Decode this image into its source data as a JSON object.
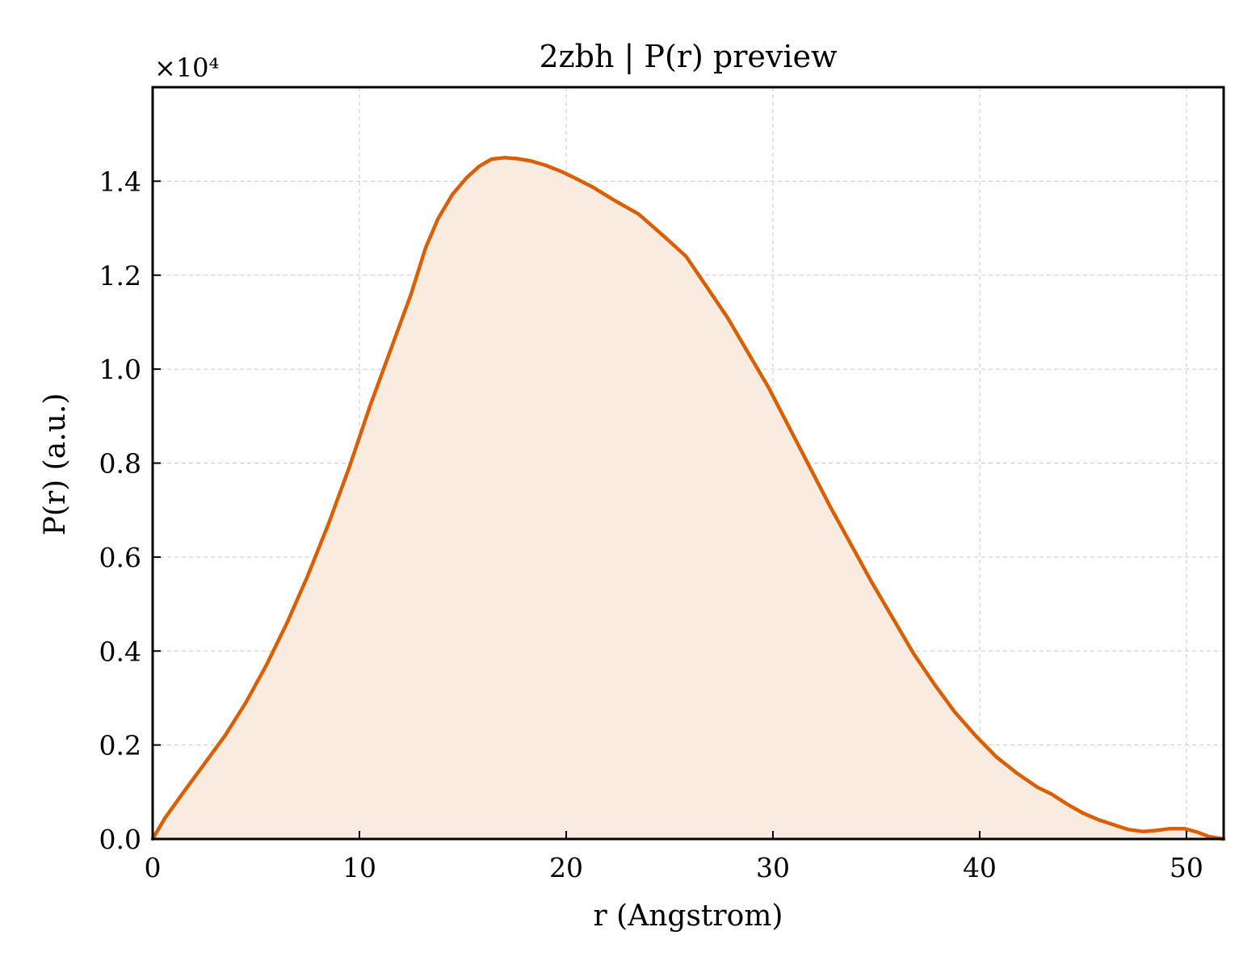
{
  "chart_data": {
    "type": "area",
    "title": "2zbh | P(r) preview",
    "xlabel": "r (Angstrom)",
    "ylabel": "P(r) (a.u.)",
    "y_multiplier": "×10⁴",
    "xlim": [
      0,
      51.8
    ],
    "ylim": [
      0,
      1.6
    ],
    "x_ticks": [
      0,
      10,
      20,
      30,
      40,
      50
    ],
    "x_tick_labels": [
      "0",
      "10",
      "20",
      "30",
      "40",
      "50"
    ],
    "y_ticks": [
      0.0,
      0.2,
      0.4,
      0.6,
      0.8,
      1.0,
      1.2,
      1.4
    ],
    "y_tick_labels": [
      "0.0",
      "0.2",
      "0.4",
      "0.6",
      "0.8",
      "1.0",
      "1.2",
      "1.4"
    ],
    "grid": true,
    "legend": "none",
    "series": [
      {
        "color": "#d95f02",
        "fill_color": "#f9ebe0",
        "x": [
          0,
          0.6,
          1.5,
          2.5,
          3.5,
          4.5,
          5.5,
          6.5,
          7.5,
          8.5,
          9.5,
          10.5,
          11.5,
          12.5,
          13.2,
          13.8,
          14.5,
          15.2,
          15.8,
          16.4,
          17.0,
          17.6,
          18.3,
          19.0,
          19.8,
          20.5,
          21.3,
          22.3,
          23.5,
          24.8,
          25.8,
          26.8,
          27.8,
          28.8,
          29.8,
          30.8,
          31.8,
          32.8,
          33.8,
          34.8,
          35.8,
          36.8,
          37.8,
          38.8,
          39.8,
          40.8,
          41.8,
          42.8,
          43.5,
          44.2,
          45.0,
          45.8,
          46.5,
          47.2,
          47.9,
          48.5,
          49.2,
          49.9,
          50.5,
          51.1,
          51.8
        ],
        "y": [
          0.0,
          0.045,
          0.1,
          0.16,
          0.22,
          0.29,
          0.37,
          0.46,
          0.56,
          0.67,
          0.79,
          0.92,
          1.04,
          1.16,
          1.258,
          1.32,
          1.372,
          1.408,
          1.432,
          1.447,
          1.45,
          1.448,
          1.443,
          1.434,
          1.42,
          1.405,
          1.387,
          1.36,
          1.33,
          1.28,
          1.24,
          1.175,
          1.11,
          1.035,
          0.96,
          0.875,
          0.79,
          0.705,
          0.625,
          0.545,
          0.47,
          0.395,
          0.33,
          0.27,
          0.22,
          0.175,
          0.14,
          0.11,
          0.095,
          0.075,
          0.055,
          0.04,
          0.03,
          0.02,
          0.016,
          0.018,
          0.022,
          0.022,
          0.015,
          0.005,
          0.0
        ]
      }
    ]
  }
}
